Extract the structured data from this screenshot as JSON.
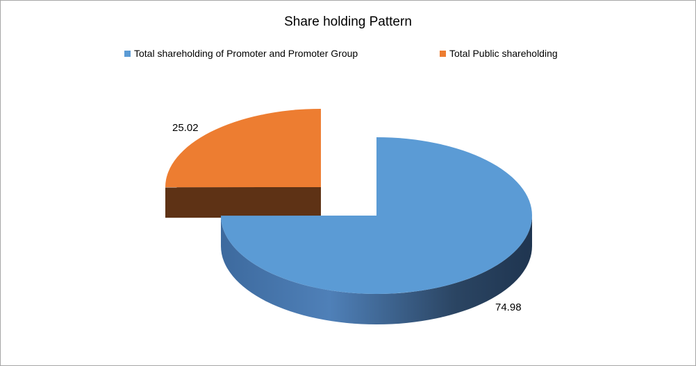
{
  "chart_data": {
    "type": "pie",
    "title": "Share holding Pattern",
    "series": [
      {
        "name": "Total shareholding of Promoter and Promoter Group",
        "value": 74.98,
        "label": "74.98",
        "color": "#5b9bd5",
        "side_color": "#2e4a6e"
      },
      {
        "name": "Total Public shareholding",
        "value": 25.02,
        "label": "25.02",
        "color": "#ed7d31",
        "side_color": "#5e3215"
      }
    ],
    "legend_position": "top",
    "style": "3d-exploded"
  }
}
